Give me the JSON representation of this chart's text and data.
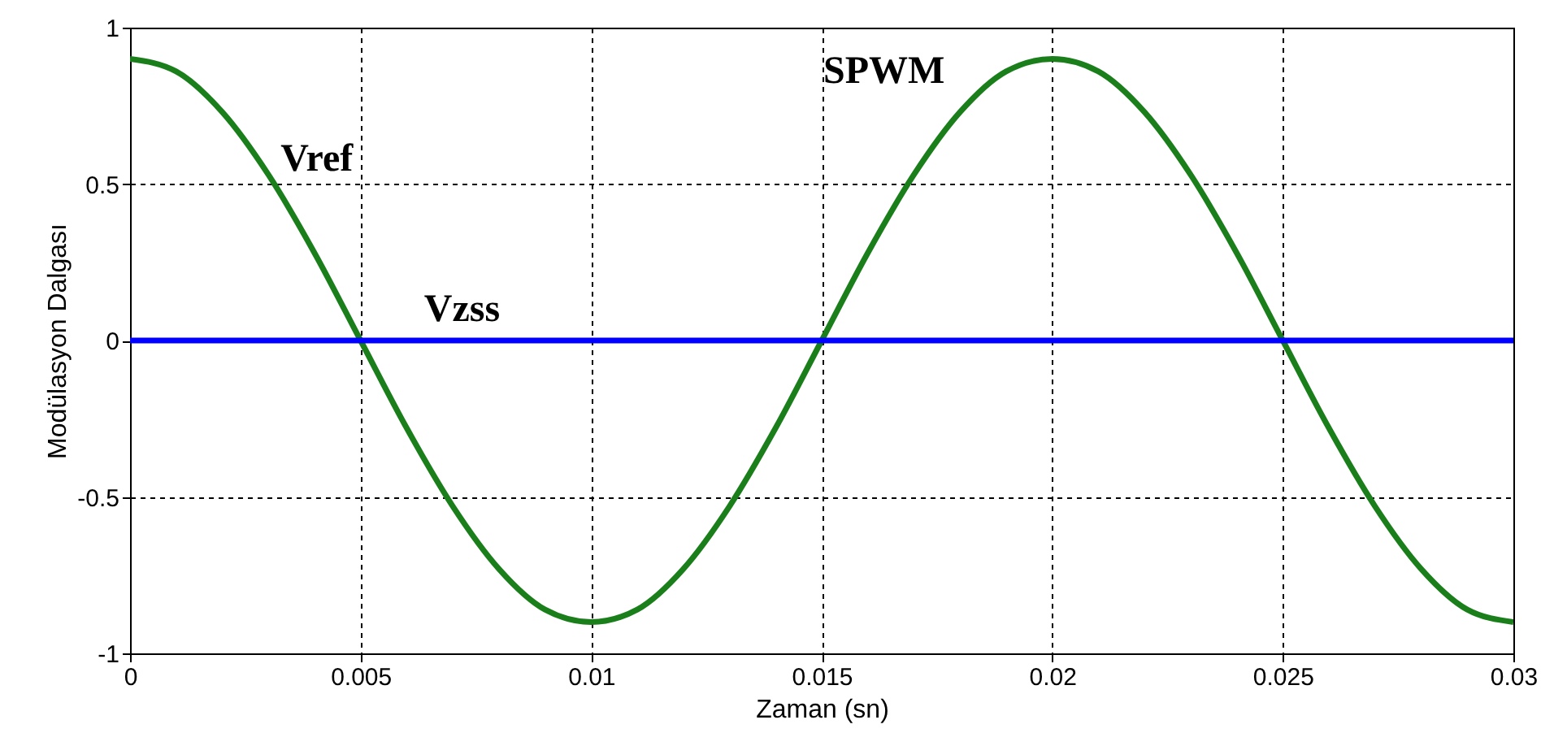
{
  "chart_data": {
    "type": "line",
    "xlabel": "Zaman (sn)",
    "ylabel": "Modülasyon Dalgası",
    "xlim": [
      0,
      0.03
    ],
    "ylim": [
      -1,
      1
    ],
    "xticks": [
      0,
      0.005,
      0.01,
      0.015,
      0.02,
      0.025,
      0.03
    ],
    "yticks": [
      -1,
      -0.5,
      0,
      0.5,
      1
    ],
    "grid": true,
    "series": [
      {
        "color": "#1a7f1a",
        "x": [
          0,
          0.001,
          0.002,
          0.003,
          0.004,
          0.005,
          0.006,
          0.007,
          0.008,
          0.009,
          0.01,
          0.011,
          0.012,
          0.013,
          0.014,
          0.015,
          0.016,
          0.017,
          0.018,
          0.019,
          0.02,
          0.021,
          0.022,
          0.023,
          0.024,
          0.025,
          0.026,
          0.027,
          0.028,
          0.029,
          0.03
        ],
        "values": [
          0.9,
          0.86,
          0.73,
          0.53,
          0.28,
          0,
          -0.28,
          -0.53,
          -0.73,
          -0.86,
          -0.9,
          -0.86,
          -0.73,
          -0.53,
          -0.28,
          0,
          0.28,
          0.53,
          0.73,
          0.86,
          0.9,
          0.86,
          0.73,
          0.53,
          0.28,
          0,
          -0.28,
          -0.53,
          -0.73,
          -0.86,
          -0.9
        ]
      },
      {
        "color": "#0000ff",
        "x": [
          0,
          0.03
        ],
        "values": [
          0,
          0
        ]
      }
    ],
    "annotations": [
      "Vref",
      "Vzss",
      "SPWM"
    ]
  }
}
